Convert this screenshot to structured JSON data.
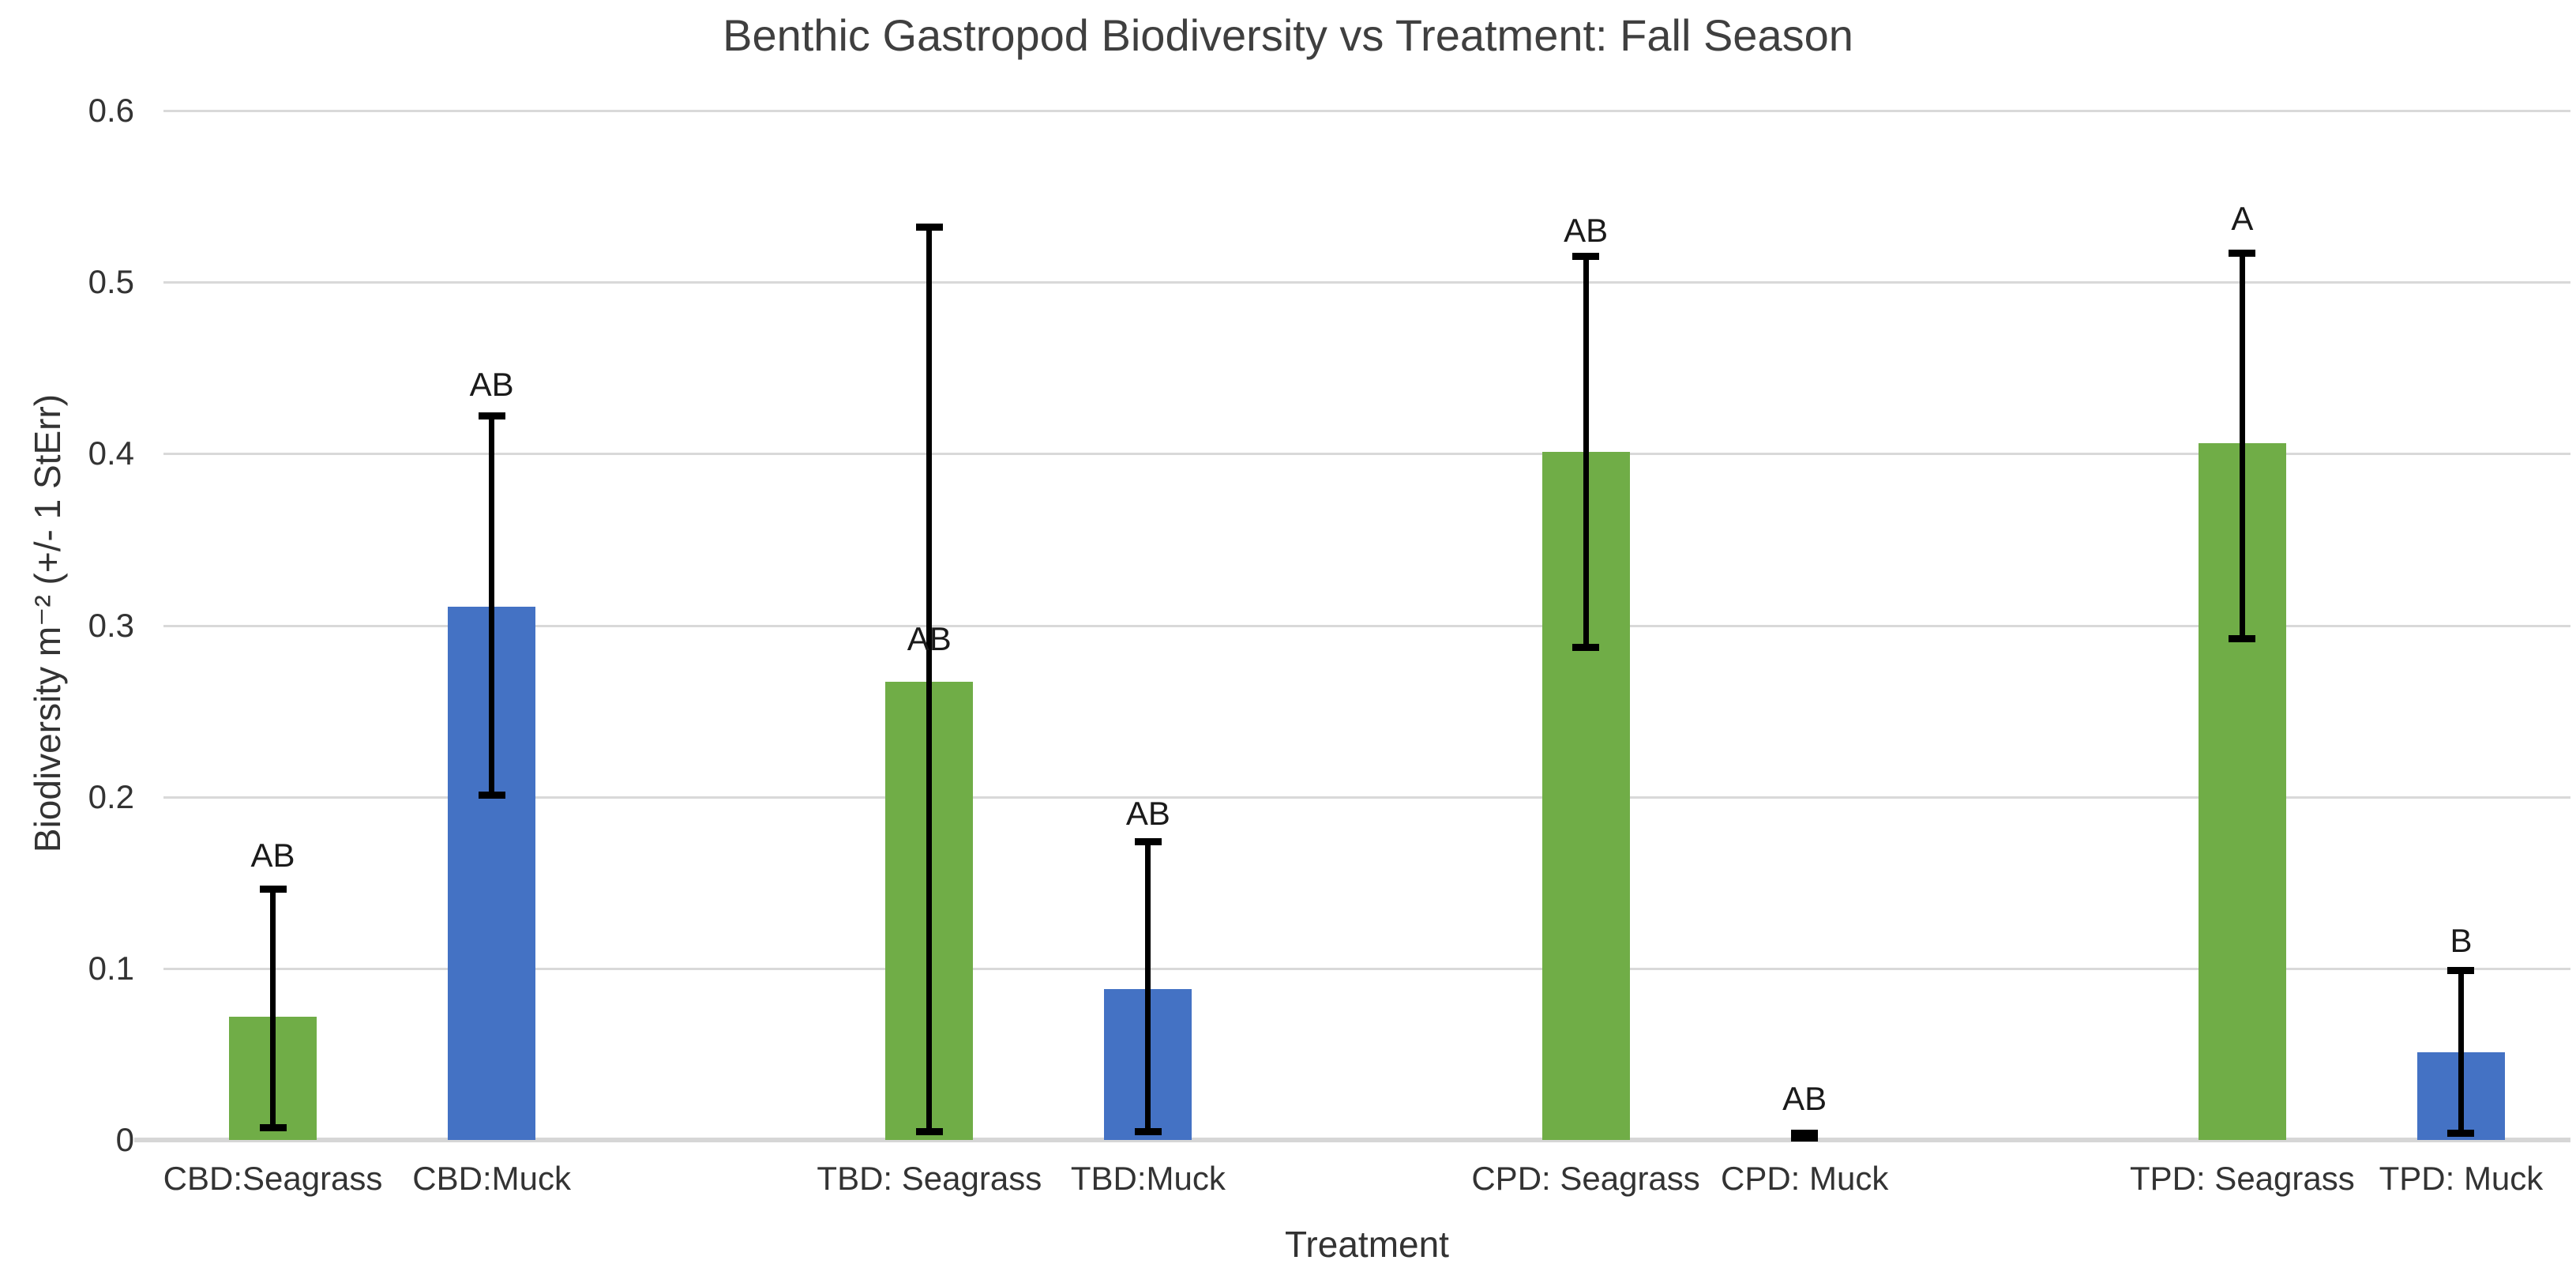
{
  "chart_data": {
    "type": "bar",
    "title": "Benthic Gastropod Biodiversity vs Treatment: Fall Season",
    "xlabel": "Treatment",
    "ylabel": "Biodiversity m⁻² (+/- 1 StErr)",
    "ylim": [
      0,
      0.6
    ],
    "ytick_step": 0.1,
    "yticks": [
      "0.6",
      "0.5",
      "0.4",
      "0.3",
      "0.2",
      "0.1",
      "0"
    ],
    "grid": "horizontal-only",
    "legend": "none",
    "error_bars": "+/- 1 standard error, black with caps",
    "slot_count": 11,
    "categories": [
      "CBD:Seagrass",
      "CBD:Muck",
      "TBD: Seagrass",
      "TBD:Muck",
      "CPD: Seagrass",
      "CPD: Muck",
      "TPD: Seagrass",
      "TPD: Muck"
    ],
    "bars": [
      {
        "slot": 0,
        "category": "CBD:Seagrass",
        "group": "Seagrass",
        "color": "#70AD47",
        "value": 0.072,
        "err_lo": 0.007,
        "err_hi": 0.146,
        "sig": "AB",
        "sig_y": 0.166
      },
      {
        "slot": 1,
        "category": "CBD:Muck",
        "group": "Muck",
        "color": "#4472C4",
        "value": 0.311,
        "err_lo": 0.201,
        "err_hi": 0.422,
        "sig": "AB",
        "sig_y": 0.44
      },
      {
        "slot": 3,
        "category": "TBD: Seagrass",
        "group": "Seagrass",
        "color": "#70AD47",
        "value": 0.267,
        "err_lo": 0.005,
        "err_hi": 0.532,
        "sig": "AB",
        "sig_y": 0.292
      },
      {
        "slot": 4,
        "category": "TBD:Muck",
        "group": "Muck",
        "color": "#4472C4",
        "value": 0.088,
        "err_lo": 0.005,
        "err_hi": 0.174,
        "sig": "AB",
        "sig_y": 0.19
      },
      {
        "slot": 6,
        "category": "CPD: Seagrass",
        "group": "Seagrass",
        "color": "#70AD47",
        "value": 0.401,
        "err_lo": 0.287,
        "err_hi": 0.515,
        "sig": "AB",
        "sig_y": 0.53
      },
      {
        "slot": 7,
        "category": "CPD: Muck",
        "group": "Muck",
        "color": "#4472C4",
        "value": 0.002,
        "err_lo": 0.001,
        "err_hi": 0.004,
        "sig": "AB",
        "sig_y": 0.024
      },
      {
        "slot": 9,
        "category": "TPD: Seagrass",
        "group": "Seagrass",
        "color": "#70AD47",
        "value": 0.406,
        "err_lo": 0.292,
        "err_hi": 0.517,
        "sig": "A",
        "sig_y": 0.537
      },
      {
        "slot": 10,
        "category": "TPD: Muck",
        "group": "Muck",
        "color": "#4472C4",
        "value": 0.051,
        "err_lo": 0.004,
        "err_hi": 0.099,
        "sig": "B",
        "sig_y": 0.116
      }
    ],
    "colors": {
      "seagrass_bar": "#70AD47",
      "muck_bar": "#4472C4",
      "gridline": "#D9D9D9",
      "error_bar": "#000000",
      "text": "#333333"
    }
  }
}
